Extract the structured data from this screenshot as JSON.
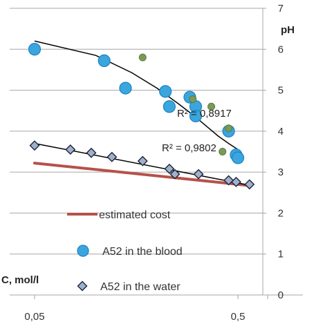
{
  "chart_data": {
    "type": "scatter",
    "x_scale": "log",
    "xlim": [
      0.05,
      0.7
    ],
    "ylim": [
      0,
      7
    ],
    "x_ticks": [
      "0,05",
      "0,5"
    ],
    "y_ticks": [
      "0",
      "1",
      "2",
      "3",
      "4",
      "5",
      "6",
      "7"
    ],
    "xlabel": "C, mol/l",
    "ylabel": "pH",
    "grid": "horizontal",
    "legend_position": "bottom",
    "series": [
      {
        "name": "estimated cost",
        "kind": "line",
        "color": "#b5524a",
        "points": [
          [
            0.05,
            3.22
          ],
          [
            0.55,
            2.68
          ]
        ]
      },
      {
        "name": "A52 in the blood",
        "kind": "scatter",
        "marker": "circle",
        "color": "#3aa6dd",
        "points": [
          [
            0.05,
            6.0
          ],
          [
            0.11,
            5.72
          ],
          [
            0.14,
            5.05
          ],
          [
            0.22,
            4.97
          ],
          [
            0.23,
            4.6
          ],
          [
            0.29,
            4.83
          ],
          [
            0.31,
            4.6
          ],
          [
            0.31,
            4.37
          ],
          [
            0.45,
            4.0
          ],
          [
            0.49,
            3.42
          ],
          [
            0.5,
            3.35
          ]
        ]
      },
      {
        "name": "",
        "kind": "scatter",
        "marker": "small-circle",
        "color": "#7a9a5a",
        "points": [
          [
            0.17,
            5.8
          ],
          [
            0.3,
            4.78
          ],
          [
            0.37,
            4.6
          ],
          [
            0.42,
            3.5
          ],
          [
            0.45,
            4.07
          ]
        ]
      },
      {
        "name": "A52 in the water",
        "kind": "scatter",
        "marker": "diamond",
        "color": "#a0b0cc",
        "points": [
          [
            0.05,
            3.65
          ],
          [
            0.075,
            3.55
          ],
          [
            0.095,
            3.47
          ],
          [
            0.12,
            3.37
          ],
          [
            0.17,
            3.27
          ],
          [
            0.23,
            3.08
          ],
          [
            0.245,
            2.95
          ],
          [
            0.32,
            2.95
          ],
          [
            0.45,
            2.8
          ],
          [
            0.49,
            2.76
          ],
          [
            0.57,
            2.7
          ]
        ]
      }
    ],
    "trendlines": [
      {
        "kind": "polynomial",
        "color": "#000000",
        "label": "R² = 0,8917",
        "points": [
          [
            0.05,
            6.2
          ],
          [
            0.1,
            5.85
          ],
          [
            0.15,
            5.43
          ],
          [
            0.2,
            5.05
          ],
          [
            0.25,
            4.7
          ],
          [
            0.3,
            4.4
          ],
          [
            0.35,
            4.12
          ],
          [
            0.4,
            3.88
          ],
          [
            0.45,
            3.7
          ],
          [
            0.5,
            3.55
          ]
        ]
      },
      {
        "kind": "linear",
        "color": "#000000",
        "label": "R² = 0,9802",
        "points": [
          [
            0.05,
            3.7
          ],
          [
            0.57,
            2.68
          ]
        ]
      }
    ]
  }
}
